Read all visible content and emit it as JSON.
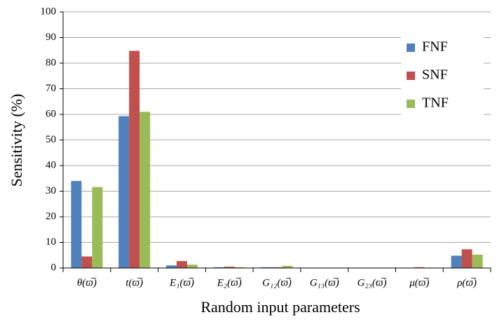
{
  "chart_data": {
    "type": "bar",
    "x_label": "Random input parameters",
    "y_label": "Sensitivity  (%)",
    "categories": [
      "θ(ϖ̅)",
      "t(ϖ̅)",
      "E₁(ϖ̅)",
      "E₂(ϖ̅)",
      "G₁₂(ϖ̅)",
      "G₁₃(ϖ̅)",
      "G₂₃(ϖ̅)",
      "μ(ϖ̅)",
      "ρ(ϖ̅)"
    ],
    "series": [
      {
        "name": "FNF",
        "color": "#4f81bd",
        "values": [
          34,
          59.3,
          1,
          0.3,
          0.3,
          0,
          0,
          0,
          4.8
        ]
      },
      {
        "name": "SNF",
        "color": "#c0504d",
        "values": [
          4.5,
          84.8,
          2.7,
          0.5,
          0.3,
          0,
          0,
          0.3,
          7.3
        ]
      },
      {
        "name": "TNF",
        "color": "#9bbb59",
        "values": [
          31.6,
          61,
          1.3,
          0.3,
          0.8,
          0,
          0,
          0,
          5.2
        ]
      }
    ],
    "ylim": [
      0,
      100
    ],
    "yticks": [
      0,
      10,
      20,
      30,
      40,
      50,
      60,
      70,
      80,
      90,
      100
    ],
    "grid": true,
    "legend": "upper right"
  }
}
